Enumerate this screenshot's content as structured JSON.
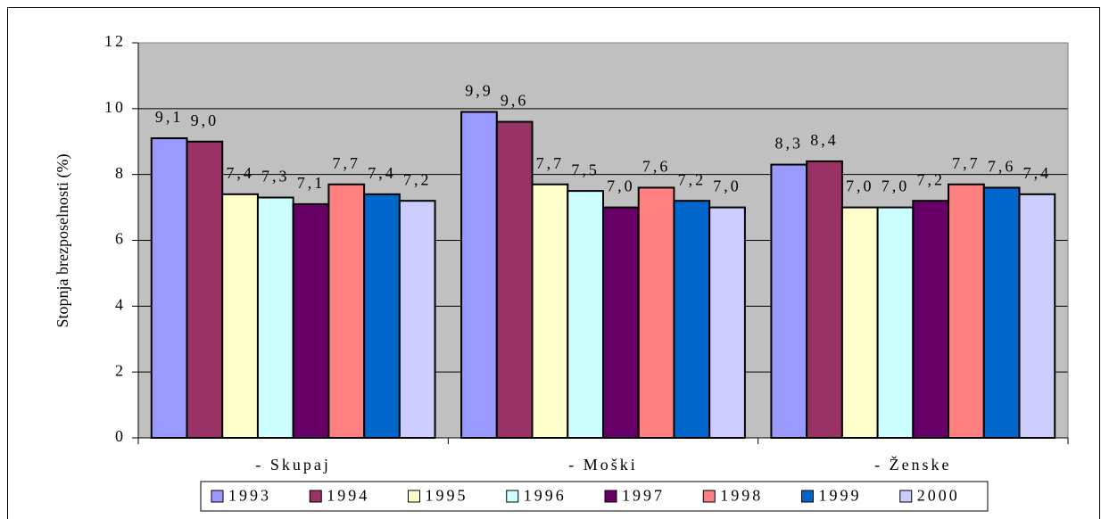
{
  "chart_data": {
    "type": "bar",
    "y_label": "Stopnja brezposelnosti (%)",
    "categories": [
      "- Skupaj",
      "- Moški",
      "- Ženske"
    ],
    "series": [
      {
        "name": "1993",
        "color": "#9999ff",
        "values": [
          9.1,
          9.9,
          8.3
        ],
        "value_labels": [
          "9,1",
          "9,9",
          "8,3"
        ]
      },
      {
        "name": "1994",
        "color": "#993366",
        "values": [
          9.0,
          9.6,
          8.4
        ],
        "value_labels": [
          "9,0",
          "9,6",
          "8,4"
        ]
      },
      {
        "name": "1995",
        "color": "#ffffcc",
        "values": [
          7.4,
          7.7,
          7.0
        ],
        "value_labels": [
          "7,4",
          "7,7",
          "7,0"
        ]
      },
      {
        "name": "1996",
        "color": "#ccffff",
        "values": [
          7.3,
          7.5,
          7.0
        ],
        "value_labels": [
          "7,3",
          "7,5",
          "7,0"
        ]
      },
      {
        "name": "1997",
        "color": "#660066",
        "values": [
          7.1,
          7.0,
          7.2
        ],
        "value_labels": [
          "7,1",
          "7,0",
          "7,2"
        ]
      },
      {
        "name": "1998",
        "color": "#ff8080",
        "values": [
          7.7,
          7.6,
          7.7
        ],
        "value_labels": [
          "7,7",
          "7,6",
          "7,7"
        ]
      },
      {
        "name": "1999",
        "color": "#0066cc",
        "values": [
          7.4,
          7.2,
          7.6
        ],
        "value_labels": [
          "7,4",
          "7,2",
          "7,6"
        ]
      },
      {
        "name": "2000",
        "color": "#ccccff",
        "values": [
          7.2,
          7.0,
          7.4
        ],
        "value_labels": [
          "7,2",
          "7,0",
          "7,4"
        ]
      }
    ],
    "ylim": [
      0,
      12
    ],
    "yticks": [
      0,
      2,
      4,
      6,
      8,
      10,
      12
    ],
    "grid": true,
    "plot_background": "#c0c0c0",
    "legend": "bottom"
  }
}
